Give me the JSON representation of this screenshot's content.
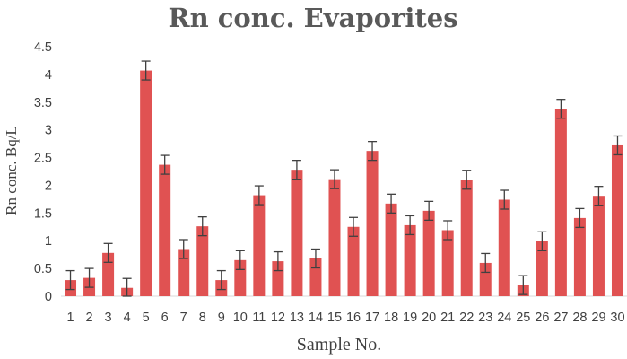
{
  "chart_data": {
    "type": "bar",
    "title": "Rn conc. Evaporites",
    "xlabel": "Sample No.",
    "ylabel": "Rn conc. Bq/L",
    "ylim": [
      0,
      4.5
    ],
    "yticks": [
      "0",
      "0.5",
      "1",
      "1.5",
      "2",
      "2.5",
      "3",
      "3.5",
      "4",
      "4.5"
    ],
    "grid": false,
    "error_bars": true,
    "categories": [
      "1",
      "2",
      "3",
      "4",
      "5",
      "6",
      "7",
      "8",
      "9",
      "10",
      "11",
      "12",
      "13",
      "14",
      "15",
      "16",
      "17",
      "18",
      "19",
      "20",
      "21",
      "22",
      "23",
      "24",
      "25",
      "26",
      "27",
      "28",
      "29",
      "30"
    ],
    "values": [
      0.29,
      0.33,
      0.78,
      0.15,
      4.07,
      2.37,
      0.85,
      1.26,
      0.29,
      0.65,
      1.82,
      0.63,
      2.28,
      0.68,
      2.11,
      1.25,
      2.62,
      1.67,
      1.28,
      1.54,
      1.19,
      2.1,
      0.6,
      1.74,
      0.2,
      0.99,
      3.38,
      1.41,
      1.81,
      2.72
    ],
    "errors": [
      0.17,
      0.17,
      0.17,
      0.17,
      0.17,
      0.17,
      0.17,
      0.17,
      0.17,
      0.17,
      0.17,
      0.17,
      0.17,
      0.17,
      0.17,
      0.17,
      0.17,
      0.17,
      0.17,
      0.17,
      0.17,
      0.17,
      0.17,
      0.17,
      0.17,
      0.17,
      0.17,
      0.17,
      0.17,
      0.17
    ],
    "colors": {
      "bar": "#e05252",
      "error": "#404040",
      "text": "#404040",
      "title": "#595959"
    }
  }
}
